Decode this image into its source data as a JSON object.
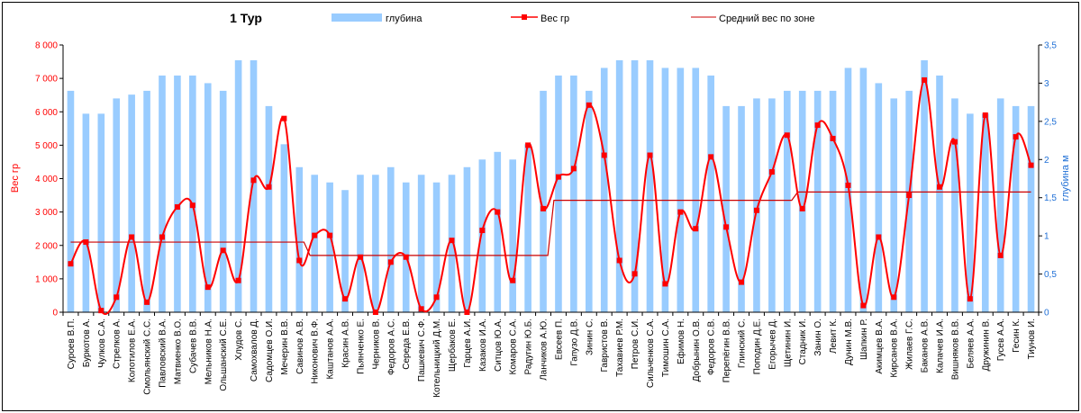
{
  "chart_data": {
    "type": "bar",
    "title": "1 Тур",
    "legend_position": "top",
    "ylabel_left": "Вес гр",
    "ylabel_right": "глубина м",
    "ylim_left": [
      0,
      8000
    ],
    "ylim_right": [
      0,
      3.5
    ],
    "yticks_left": [
      "0",
      "1 000",
      "2 000",
      "3 000",
      "4 000",
      "5 000",
      "6 000",
      "7 000",
      "8 000"
    ],
    "yticks_right": [
      "0",
      "0,5",
      "1",
      "1,5",
      "2",
      "2,5",
      "3",
      "3,5"
    ],
    "grid": false,
    "categories": [
      "Суроев В.П.",
      "Буркотов А.",
      "Чулков С.А.",
      "Стрелков А.",
      "Колотилов Е.А.",
      "Смольянский С.С.",
      "Павловский В.А.",
      "Матвиенко В.О.",
      "Субачев В.В.",
      "Мельников Н.А.",
      "Ольшанский С.Е.",
      "Хлудов С.",
      "Самохвалов Д.",
      "Садомцев О.И.",
      "Мечерин В.В.",
      "Савинов А.В.",
      "Никонович В.Ф.",
      "Каштанов А.А.",
      "Красин А.В.",
      "Пьянченко Е.",
      "Черников В.",
      "Федоров А.С.",
      "Середа Е.В.",
      "Пашкевич С.Ф.",
      "Котельницкий Д.М.",
      "Щербаков Е.",
      "Гарцев А.И.",
      "Казаков И.А.",
      "Ситцов Ю.А.",
      "Комаров С.А.",
      "Радугин Ю.Б.",
      "Ланчиков А.Ю.",
      "Евсеев П.",
      "Гапузо Д.В.",
      "Зинин С.",
      "Гавристов В.",
      "Тахавиев Р.М.",
      "Петров С.И.",
      "Сильченков С.А.",
      "Тимошин С.А.",
      "Ефимов Н.",
      "Добрынин О.В.",
      "Федоров С.В.",
      "Перепёгин В.В.",
      "Глинский С.",
      "Поподин Д.Е.",
      "Егорычев Д.",
      "Щетинин И.",
      "Стадник И.",
      "Занин О.",
      "Левит К.",
      "Дунин М.В.",
      "Шапкин Р.",
      "Акимцев В.А.",
      "Кирсанов В.А.",
      "Жилаев Г.С.",
      "Баканов А.В.",
      "Калачев И.А.",
      "Вишняков В.В.",
      "Беляев А.А.",
      "Дружинин В.",
      "Гусев А.А.",
      "Гесин К.",
      "Тиунов И."
    ],
    "series": [
      {
        "name": "глубина",
        "type": "bar",
        "axis": "right",
        "color": "#99ccff",
        "values": [
          2.9,
          2.6,
          2.6,
          2.8,
          2.85,
          2.9,
          3.1,
          3.1,
          3.1,
          3.0,
          2.9,
          3.3,
          3.3,
          2.7,
          2.2,
          1.9,
          1.8,
          1.7,
          1.6,
          1.8,
          1.8,
          1.9,
          1.7,
          1.8,
          1.7,
          1.8,
          1.9,
          2.0,
          2.1,
          2.0,
          2.2,
          2.9,
          3.1,
          3.1,
          2.9,
          3.2,
          3.3,
          3.3,
          3.3,
          3.2,
          3.2,
          3.2,
          3.1,
          2.7,
          2.7,
          2.8,
          2.8,
          2.9,
          2.9,
          2.9,
          2.9,
          3.2,
          3.2,
          3.0,
          2.8,
          2.9,
          3.3,
          3.1,
          2.8,
          2.6,
          2.6,
          2.8,
          2.7,
          2.7
        ]
      },
      {
        "name": "Вес гр",
        "type": "line",
        "axis": "left",
        "color": "#ff0000",
        "smooth": true,
        "marker": "square",
        "values": [
          1450,
          2100,
          50,
          450,
          2250,
          300,
          2250,
          3150,
          3200,
          750,
          1850,
          950,
          3950,
          3750,
          5800,
          1550,
          2300,
          2300,
          400,
          1650,
          0,
          1500,
          1650,
          100,
          450,
          2150,
          0,
          2450,
          3000,
          950,
          5000,
          3100,
          4050,
          4300,
          6200,
          4700,
          1550,
          1150,
          4700,
          850,
          3000,
          2500,
          4650,
          2550,
          900,
          3050,
          4200,
          5300,
          3100,
          5600,
          5200,
          3800,
          200,
          2250,
          450,
          3500,
          6950,
          3750,
          5100,
          400,
          5900,
          1700,
          5250,
          4400
        ]
      },
      {
        "name": "Средний вес по зоне",
        "type": "step-line",
        "axis": "left",
        "color": "#cc0000",
        "values": [
          2100,
          2100,
          2100,
          2100,
          2100,
          2100,
          2100,
          2100,
          2100,
          2100,
          2100,
          2100,
          2100,
          2100,
          2100,
          2100,
          1700,
          1700,
          1700,
          1700,
          1700,
          1700,
          1700,
          1700,
          1700,
          1700,
          1700,
          1700,
          1700,
          1700,
          1700,
          1700,
          3350,
          3350,
          3350,
          3350,
          3350,
          3350,
          3350,
          3350,
          3350,
          3350,
          3350,
          3350,
          3350,
          3350,
          3350,
          3350,
          3600,
          3600,
          3600,
          3600,
          3600,
          3600,
          3600,
          3600,
          3600,
          3600,
          3600,
          3600,
          3600,
          3600,
          3600,
          3600
        ]
      }
    ]
  },
  "colors": {
    "bars": "#99ccff",
    "line": "#ff0000",
    "avg": "#cc0000",
    "left_axis_text": "#ff0000",
    "right_axis_text": "#1f6fd6"
  }
}
